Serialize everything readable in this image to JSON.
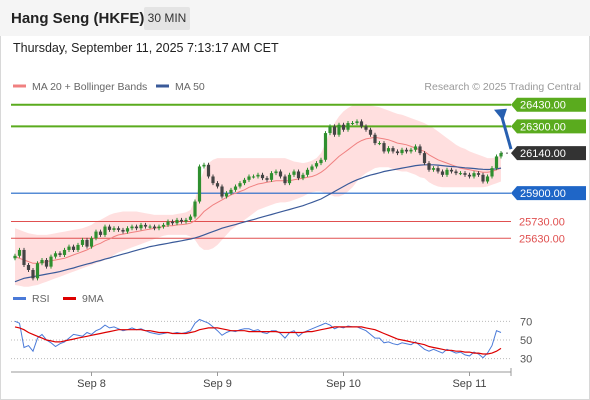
{
  "header": {
    "title": "Hang Seng (HKFE)",
    "timeframe": "30 MIN"
  },
  "datetime": "Thursday, September 11, 2025 7:13:17 AM CET",
  "colors": {
    "up": "#2f8f2f",
    "down": "#444444",
    "bb_fill": "#ffd9d9",
    "ma20": "#f08080",
    "ma50": "#3a5a99",
    "resistance": "#5aab1e",
    "support_blue": "#1f66c7",
    "support_red": "#e05050",
    "arrow": "#2860b0",
    "rsi": "#4a7ad8",
    "rsi_ma": "#dd0000"
  },
  "chart_data": [
    {
      "type": "candlestick",
      "legend": [
        {
          "name": "MA 20 + Bollinger Bands",
          "color": "#f08080"
        },
        {
          "name": "MA 50",
          "color": "#3a5a99"
        }
      ],
      "watermark": "Research © 2025 Trading Central",
      "x_ticks": [
        "Sep 8",
        "Sep 9",
        "Sep 10",
        "Sep 11"
      ],
      "ylim": [
        25350,
        26530
      ],
      "last_price": 26140.0,
      "levels": [
        {
          "label": "26430.00",
          "value": 26430,
          "kind": "resistance"
        },
        {
          "label": "26300.00",
          "value": 26300,
          "kind": "resistance"
        },
        {
          "label": "26140.00",
          "value": 26140,
          "kind": "last"
        },
        {
          "label": "25900.00",
          "value": 25900,
          "kind": "pivot"
        },
        {
          "label": "25730.00",
          "value": 25730,
          "kind": "support"
        },
        {
          "label": "25630.00",
          "value": 25630,
          "kind": "support"
        }
      ],
      "close": [
        25525,
        25560,
        25470,
        25440,
        25390,
        25480,
        25500,
        25460,
        25520,
        25540,
        25530,
        25560,
        25580,
        25560,
        25590,
        25620,
        25580,
        25630,
        25670,
        25650,
        25700,
        25680,
        25690,
        25680,
        25670,
        25690,
        25700,
        25690,
        25710,
        25700,
        25700,
        25690,
        25700,
        25710,
        25730,
        25720,
        25740,
        25730,
        25740,
        25760,
        25850,
        26060,
        26070,
        26000,
        25960,
        25940,
        25880,
        25900,
        25920,
        25940,
        25960,
        25980,
        26000,
        26000,
        26010,
        25990,
        25980,
        26020,
        26030,
        26000,
        25960,
        26010,
        26030,
        25990,
        26010,
        26040,
        26060,
        26080,
        26100,
        26260,
        26300,
        26250,
        26310,
        26280,
        26320,
        26320,
        26330,
        26300,
        26280,
        26250,
        26200,
        26200,
        26150,
        26170,
        26150,
        26140,
        26160,
        26150,
        26160,
        26180,
        26140,
        26080,
        26040,
        26050,
        26030,
        26010,
        26040,
        26030,
        26020,
        26020,
        26010,
        26000,
        26020,
        26010,
        25970,
        26000,
        26050,
        26120,
        26140
      ],
      "ma20": [
        25520,
        25510,
        25500,
        25490,
        25480,
        25480,
        25485,
        25490,
        25495,
        25500,
        25505,
        25510,
        25520,
        25530,
        25540,
        25550,
        25560,
        25575,
        25590,
        25600,
        25615,
        25625,
        25640,
        25650,
        25655,
        25660,
        25665,
        25670,
        25675,
        25680,
        25685,
        25690,
        25695,
        25700,
        25705,
        25705,
        25710,
        25712,
        25715,
        25720,
        25735,
        25760,
        25790,
        25810,
        25830,
        25845,
        25860,
        25875,
        25890,
        25900,
        25910,
        25920,
        25935,
        25945,
        25955,
        25960,
        25965,
        25970,
        25975,
        25975,
        25975,
        25975,
        25980,
        25985,
        25990,
        25995,
        26000,
        26010,
        26025,
        26045,
        26070,
        26095,
        26120,
        26140,
        26160,
        26180,
        26200,
        26215,
        26225,
        26230,
        26235,
        26230,
        26225,
        26220,
        26210,
        26200,
        26195,
        26190,
        26180,
        26170,
        26160,
        26150,
        26130,
        26115,
        26100,
        26090,
        26080,
        26070,
        26060,
        26050,
        26045,
        26040,
        26035,
        26030,
        26025,
        26025,
        26030,
        26040,
        26050
      ],
      "bb_upper": [
        25690,
        25680,
        25670,
        25660,
        25655,
        25650,
        25650,
        25650,
        25655,
        25660,
        25665,
        25670,
        25675,
        25680,
        25685,
        25690,
        25700,
        25710,
        25730,
        25740,
        25755,
        25770,
        25780,
        25785,
        25790,
        25790,
        25790,
        25790,
        25785,
        25780,
        25775,
        25770,
        25770,
        25770,
        25770,
        25770,
        25775,
        25780,
        25785,
        25800,
        25860,
        25960,
        26040,
        26080,
        26100,
        26110,
        26110,
        26110,
        26110,
        26110,
        26110,
        26110,
        26110,
        26110,
        26110,
        26110,
        26110,
        26110,
        26110,
        26110,
        26110,
        26100,
        26090,
        26085,
        26080,
        26085,
        26095,
        26110,
        26140,
        26200,
        26270,
        26320,
        26360,
        26390,
        26410,
        26425,
        26430,
        26430,
        26430,
        26425,
        26420,
        26415,
        26405,
        26395,
        26385,
        26375,
        26370,
        26360,
        26350,
        26340,
        26330,
        26320,
        26305,
        26290,
        26270,
        26250,
        26230,
        26210,
        26190,
        26175,
        26165,
        26150,
        26140,
        26130,
        26120,
        26110,
        26110,
        26115,
        26125
      ],
      "bb_lower": [
        25350,
        25345,
        25340,
        25340,
        25345,
        25350,
        25360,
        25370,
        25380,
        25390,
        25400,
        25410,
        25420,
        25430,
        25440,
        25450,
        25460,
        25470,
        25480,
        25490,
        25500,
        25510,
        25530,
        25545,
        25555,
        25565,
        25575,
        25585,
        25595,
        25605,
        25615,
        25625,
        25635,
        25645,
        25650,
        25650,
        25650,
        25650,
        25650,
        25640,
        25620,
        25580,
        25560,
        25560,
        25570,
        25590,
        25620,
        25650,
        25680,
        25700,
        25720,
        25740,
        25760,
        25780,
        25800,
        25810,
        25820,
        25830,
        25840,
        25845,
        25845,
        25850,
        25860,
        25870,
        25880,
        25895,
        25905,
        25910,
        25910,
        25900,
        25890,
        25880,
        25880,
        25890,
        25910,
        25935,
        25970,
        26000,
        26020,
        26035,
        26050,
        26055,
        26055,
        26055,
        26045,
        26035,
        26030,
        26030,
        26020,
        26010,
        25995,
        25990,
        25965,
        25950,
        25940,
        25935,
        25935,
        25935,
        25935,
        25935,
        25935,
        25935,
        25935,
        25935,
        25935,
        25940,
        25950,
        25960,
        25970
      ],
      "ma50": [
        25370,
        25380,
        25390,
        25395,
        25400,
        25405,
        25410,
        25415,
        25420,
        25425,
        25430,
        25438,
        25445,
        25452,
        25460,
        25468,
        25475,
        25482,
        25490,
        25497,
        25505,
        25512,
        25520,
        25528,
        25535,
        25542,
        25550,
        25558,
        25565,
        25572,
        25580,
        25585,
        25590,
        25595,
        25600,
        25605,
        25610,
        25615,
        25620,
        25625,
        25632,
        25640,
        25650,
        25660,
        25670,
        25680,
        25690,
        25698,
        25705,
        25712,
        25720,
        25728,
        25735,
        25742,
        25750,
        25758,
        25765,
        25772,
        25780,
        25788,
        25795,
        25802,
        25810,
        25818,
        25825,
        25835,
        25845,
        25855,
        25865,
        25880,
        25895,
        25910,
        25925,
        25940,
        25955,
        25968,
        25980,
        25990,
        26000,
        26008,
        26015,
        26022,
        26030,
        26035,
        26040,
        26045,
        26050,
        26055,
        26060,
        26065,
        26068,
        26070,
        26070,
        26070,
        26068,
        26065,
        26062,
        26060,
        26058,
        26055,
        26052,
        26050,
        26048,
        26045,
        26043,
        26042,
        26043,
        26046,
        26050
      ]
    },
    {
      "type": "line",
      "legend": [
        {
          "name": "RSI",
          "color": "#4a7ad8"
        },
        {
          "name": "9MA",
          "color": "#dd0000"
        }
      ],
      "y_ticks": [
        70,
        50,
        30
      ],
      "ylim": [
        20,
        80
      ],
      "rsi": [
        70,
        68,
        42,
        44,
        38,
        52,
        56,
        50,
        47,
        43,
        46,
        48,
        52,
        56,
        55,
        54,
        58,
        56,
        60,
        62,
        66,
        63,
        64,
        62,
        60,
        61,
        63,
        61,
        62,
        60,
        58,
        57,
        56,
        57,
        58,
        57,
        58,
        57,
        58,
        60,
        68,
        72,
        70,
        68,
        64,
        60,
        55,
        58,
        60,
        59,
        61,
        62,
        62,
        60,
        61,
        58,
        57,
        60,
        60,
        57,
        52,
        58,
        60,
        54,
        58,
        60,
        62,
        64,
        66,
        68,
        66,
        62,
        64,
        63,
        65,
        64,
        64,
        62,
        60,
        56,
        52,
        52,
        47,
        48,
        46,
        45,
        47,
        46,
        45,
        48,
        44,
        40,
        38,
        40,
        38,
        36,
        40,
        38,
        36,
        37,
        34,
        33,
        37,
        35,
        31,
        36,
        44,
        60,
        58
      ],
      "rsi_ma": [
        64,
        63,
        61,
        58,
        56,
        54,
        52,
        50,
        49,
        48,
        48,
        49,
        50,
        51,
        52,
        53,
        54,
        55,
        56,
        57,
        58,
        59,
        60,
        61,
        61,
        61,
        61,
        61,
        61,
        60,
        60,
        59,
        58,
        58,
        58,
        57,
        57,
        57,
        57,
        58,
        59,
        61,
        62,
        63,
        63,
        63,
        62,
        61,
        60,
        60,
        60,
        60,
        59,
        59,
        59,
        59,
        59,
        59,
        59,
        58,
        58,
        58,
        58,
        58,
        58,
        59,
        59,
        60,
        61,
        62,
        63,
        64,
        64,
        64,
        64,
        64,
        64,
        64,
        63,
        62,
        61,
        59,
        57,
        55,
        53,
        51,
        50,
        49,
        48,
        47,
        46,
        45,
        43,
        42,
        41,
        40,
        39,
        39,
        38,
        38,
        37,
        37,
        36,
        36,
        35,
        35,
        36,
        38,
        41
      ]
    }
  ]
}
